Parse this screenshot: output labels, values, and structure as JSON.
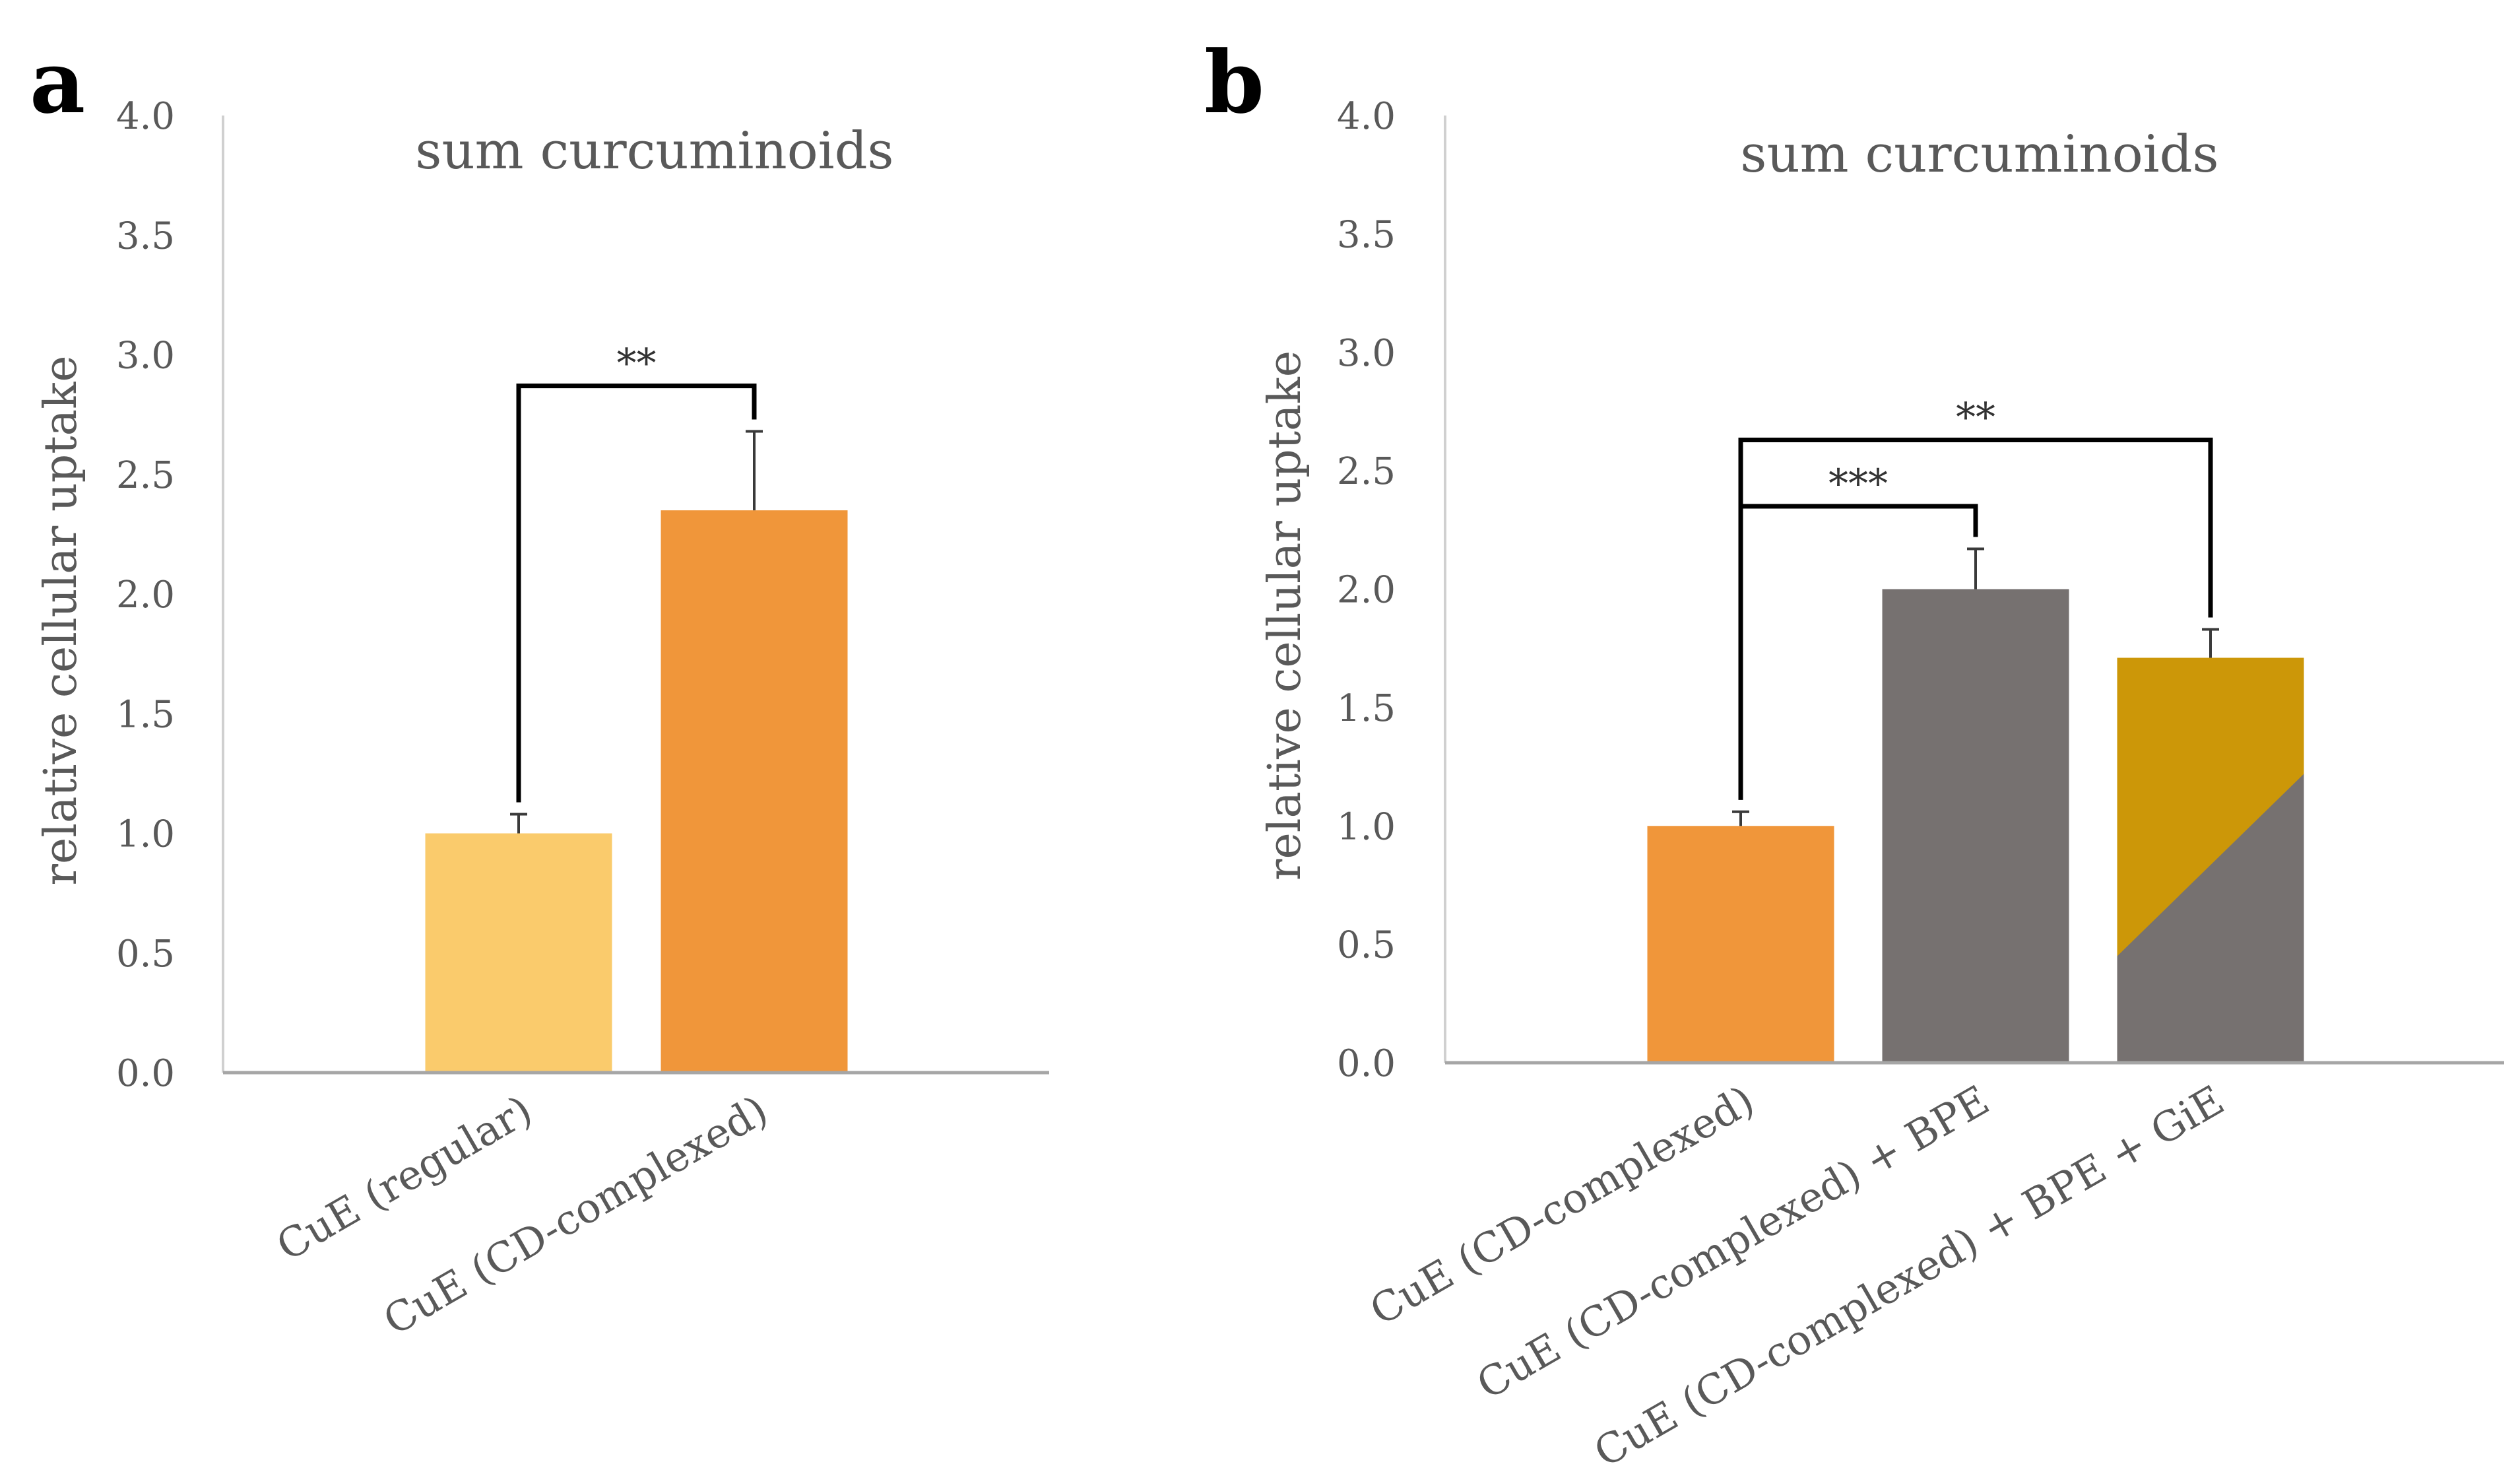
{
  "panels": [
    {
      "letter": "a",
      "chart_data": {
        "type": "bar",
        "title": "sum curcuminoids",
        "xlabel": "",
        "ylabel": "relative cellular uptake",
        "ylim": [
          0,
          4
        ],
        "yticks": [
          "0.0",
          "0.5",
          "1.0",
          "1.5",
          "2.0",
          "2.5",
          "3.0",
          "3.5",
          "4.0"
        ],
        "categories": [
          "CuE (regular)",
          "CuE (CD-complexed)"
        ],
        "values": [
          1.0,
          2.35
        ],
        "errors": [
          0.08,
          0.33
        ],
        "colors": [
          "#FACB6C",
          "#F0963A"
        ],
        "significance": [
          {
            "from": 0,
            "to": 1,
            "label": "**",
            "level": 2.87
          }
        ]
      }
    },
    {
      "letter": "b",
      "chart_data": {
        "type": "bar",
        "title": "sum curcuminoids",
        "xlabel": "",
        "ylabel": "relative cellular uptake",
        "ylim": [
          0,
          4
        ],
        "yticks": [
          "0.0",
          "0.5",
          "1.0",
          "1.5",
          "2.0",
          "2.5",
          "3.0",
          "3.5",
          "4.0"
        ],
        "categories": [
          "CuE (CD-complexed)",
          "CuE (CD-complexed) + BPE",
          "CuE (CD-complexed) + BPE + GiE"
        ],
        "values": [
          1.0,
          2.0,
          1.71
        ],
        "errors": [
          0.06,
          0.17,
          0.12
        ],
        "colors": [
          "#F0963A",
          "#767170",
          "#CC9708"
        ],
        "split_fill": {
          "index": 2,
          "lower_color": "#767170",
          "left_value": 0.45,
          "right_value": 1.22
        },
        "significance": [
          {
            "from": 0,
            "to": 1,
            "label": "***",
            "level": 2.35
          },
          {
            "from": 0,
            "to": 2,
            "label": "**",
            "level": 2.63
          }
        ]
      }
    }
  ]
}
